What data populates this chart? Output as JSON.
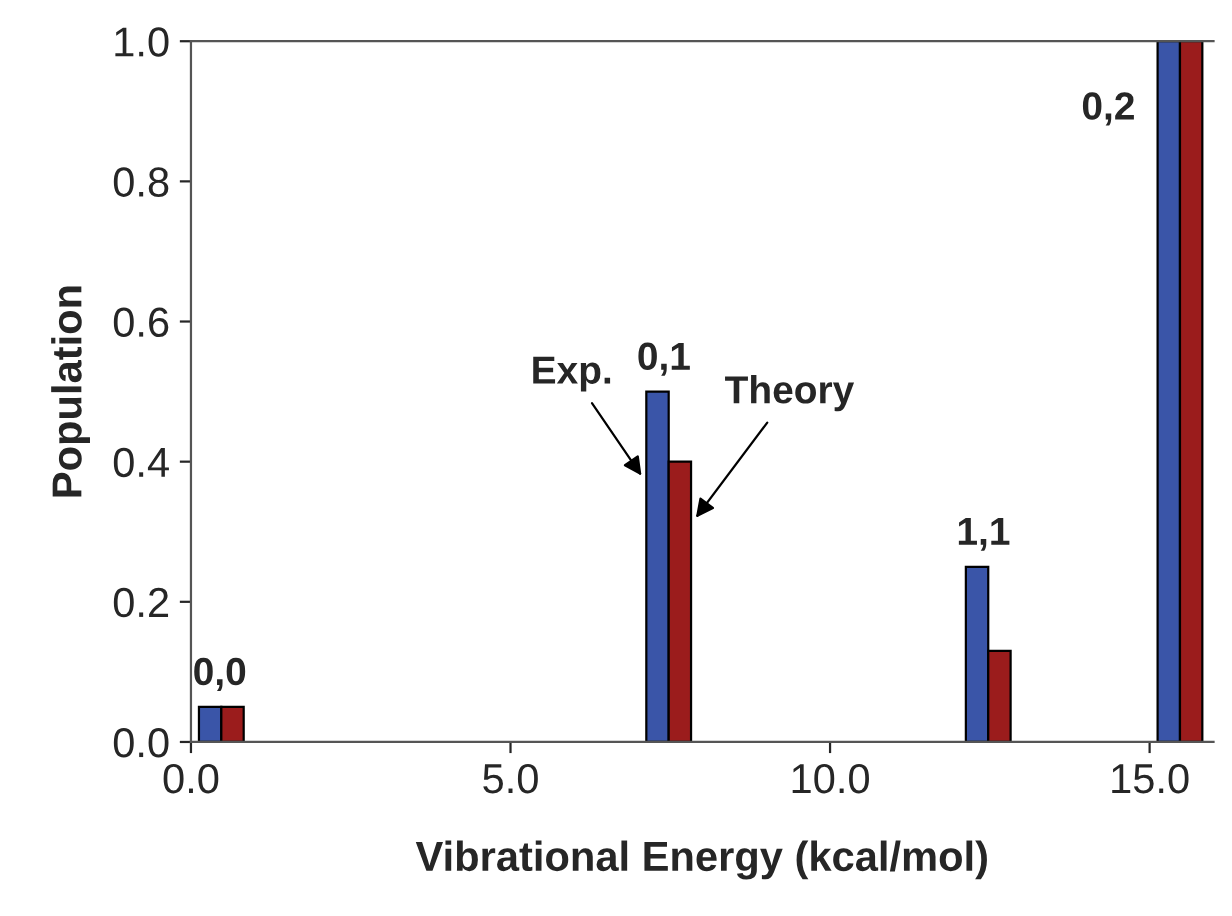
{
  "chart_data": {
    "type": "bar",
    "xlabel": "Vibrational Energy (kcal/mol)",
    "ylabel": "Population",
    "series": [
      {
        "name": "Exp.",
        "color": "#3a55a8",
        "x": [
          0.3,
          7.3,
          12.3,
          15.3
        ],
        "values": [
          0.05,
          0.5,
          0.25,
          1.0
        ]
      },
      {
        "name": "Theory",
        "color": "#9b1c1c",
        "x": [
          0.65,
          7.65,
          12.65,
          15.65
        ],
        "values": [
          0.05,
          0.4,
          0.13,
          1.0
        ]
      }
    ],
    "annotations": [
      {
        "text": "0,0",
        "x": 0.45,
        "y": 0.05
      },
      {
        "text": "0,1",
        "x": 7.4,
        "y": 0.5
      },
      {
        "text": "1,1",
        "x": 12.4,
        "y": 0.25
      },
      {
        "text": "0,2",
        "x": 15.3,
        "y": 1.0
      }
    ],
    "xlim": [
      0,
      16
    ],
    "xticks": [
      {
        "value": 0,
        "label": "0.0"
      },
      {
        "value": 5,
        "label": "5.0"
      },
      {
        "value": 10,
        "label": "10.0"
      },
      {
        "value": 15,
        "label": "15.0"
      }
    ],
    "ylim": [
      0,
      1.0
    ],
    "yticks": [
      {
        "value": 0,
        "label": "0.0"
      },
      {
        "value": 0.2,
        "label": "0.2"
      },
      {
        "value": 0.4,
        "label": "0.4"
      },
      {
        "value": 0.6,
        "label": "0.6"
      },
      {
        "value": 0.8,
        "label": "0.8"
      },
      {
        "value": 1.0,
        "label": "1.0"
      }
    ],
    "grid": false,
    "legend": false
  }
}
